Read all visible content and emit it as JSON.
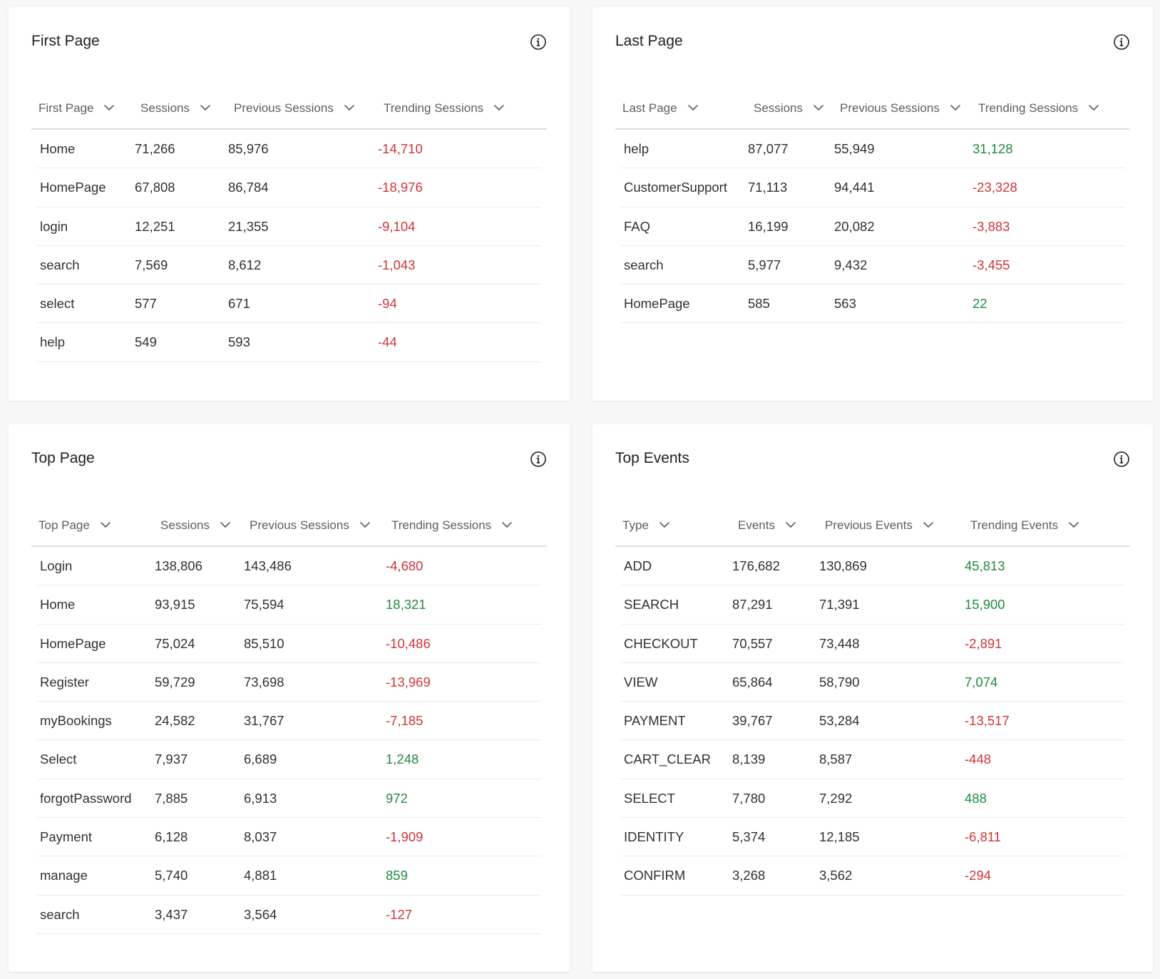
{
  "colors": {
    "negative": "#d13438",
    "positive": "#218a3e"
  },
  "cards": [
    {
      "title": "First Page",
      "info_icon": "info-icon",
      "columns": [
        "First Page",
        "Sessions",
        "Previous Sessions",
        "Trending Sessions"
      ],
      "col_x": [
        10,
        153,
        284,
        494
      ],
      "cell_x": [
        12,
        145,
        276,
        486
      ],
      "rows": [
        [
          "Home",
          "71,266",
          "85,976",
          "-14,710"
        ],
        [
          "HomePage",
          "67,808",
          "86,784",
          "-18,976"
        ],
        [
          "login",
          "12,251",
          "21,355",
          "-9,104"
        ],
        [
          "search",
          "7,569",
          "8,612",
          "-1,043"
        ],
        [
          "select",
          "577",
          "671",
          "-94"
        ],
        [
          "help",
          "549",
          "593",
          "-44"
        ]
      ]
    },
    {
      "title": "Last Page",
      "info_icon": "info-icon",
      "columns": [
        "Last Page",
        "Sessions",
        "Previous Sessions",
        "Trending Sessions"
      ],
      "col_x": [
        10,
        194,
        315,
        509
      ],
      "cell_x": [
        12,
        186,
        307,
        501
      ],
      "rows": [
        [
          "help",
          "87,077",
          "55,949",
          "31,128"
        ],
        [
          "CustomerSupport",
          "71,113",
          "94,441",
          "-23,328"
        ],
        [
          "FAQ",
          "16,199",
          "20,082",
          "-3,883"
        ],
        [
          "search",
          "5,977",
          "9,432",
          "-3,455"
        ],
        [
          "HomePage",
          "585",
          "563",
          "22"
        ]
      ]
    },
    {
      "title": "Top Page",
      "info_icon": "info-icon",
      "columns": [
        "Top Page",
        "Sessions",
        "Previous Sessions",
        "Trending Sessions"
      ],
      "col_x": [
        10,
        181,
        306,
        505
      ],
      "cell_x": [
        12,
        173,
        298,
        497
      ],
      "rows": [
        [
          "Login",
          "138,806",
          "143,486",
          "-4,680"
        ],
        [
          "Home",
          "93,915",
          "75,594",
          "18,321"
        ],
        [
          "HomePage",
          "75,024",
          "85,510",
          "-10,486"
        ],
        [
          "Register",
          "59,729",
          "73,698",
          "-13,969"
        ],
        [
          "myBookings",
          "24,582",
          "31,767",
          "-7,185"
        ],
        [
          "Select",
          "7,937",
          "6,689",
          "1,248"
        ],
        [
          "forgotPassword",
          "7,885",
          "6,913",
          "972"
        ],
        [
          "Payment",
          "6,128",
          "8,037",
          "-1,909"
        ],
        [
          "manage",
          "5,740",
          "4,881",
          "859"
        ],
        [
          "search",
          "3,437",
          "3,564",
          "-127"
        ]
      ]
    },
    {
      "title": "Top Events",
      "info_icon": "info-icon",
      "columns": [
        "Type",
        "Events",
        "Previous Events",
        "Trending Events"
      ],
      "col_x": [
        10,
        172,
        294,
        498
      ],
      "cell_x": [
        12,
        164,
        286,
        490
      ],
      "rows": [
        [
          "ADD",
          "176,682",
          "130,869",
          "45,813"
        ],
        [
          "SEARCH",
          "87,291",
          "71,391",
          "15,900"
        ],
        [
          "CHECKOUT",
          "70,557",
          "73,448",
          "-2,891"
        ],
        [
          "VIEW",
          "65,864",
          "58,790",
          "7,074"
        ],
        [
          "PAYMENT",
          "39,767",
          "53,284",
          "-13,517"
        ],
        [
          "CART_CLEAR",
          "8,139",
          "8,587",
          "-448"
        ],
        [
          "SELECT",
          "7,780",
          "7,292",
          "488"
        ],
        [
          "IDENTITY",
          "5,374",
          "12,185",
          "-6,811"
        ],
        [
          "CONFIRM",
          "3,268",
          "3,562",
          "-294"
        ]
      ]
    }
  ]
}
